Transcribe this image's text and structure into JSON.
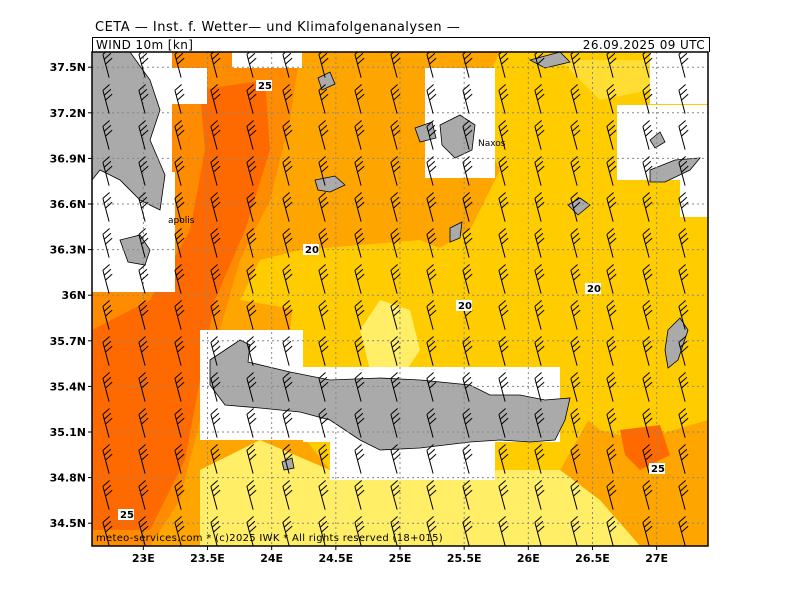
{
  "header": {
    "institute": "CETA — Inst. f. Wetter— und Klimafolgenanalysen —",
    "parameter": "WIND 10m [kn]",
    "datetime": "26.09.2025 09 UTC"
  },
  "footer": {
    "credit": "meteo-services.com * (c)2025 IWK * All rights reserved (18+015)"
  },
  "map": {
    "lon_range": [
      22.6,
      27.4
    ],
    "lat_range": [
      34.35,
      37.6
    ],
    "lon_ticks": [
      "23E",
      "23.5E",
      "24E",
      "24.5E",
      "25E",
      "25.5E",
      "26E",
      "26.5E",
      "27E"
    ],
    "lat_ticks": [
      "37.5N",
      "37.2N",
      "36.9N",
      "36.6N",
      "36.3N",
      "36N",
      "35.7N",
      "35.4N",
      "35.1N",
      "34.8N",
      "34.5N"
    ],
    "place_names": [
      "Naxos",
      "apolis"
    ],
    "contour_labels": [
      "25",
      "20",
      "20",
      "20",
      "25",
      "25"
    ],
    "colors": {
      "wind_15_20": "#ffee66",
      "wind_20_25": "#ffcc00",
      "wind_25_30": "#ffa500",
      "wind_30_35": "#ff8c00",
      "wind_35_plus": "#ff6a00",
      "land": "#aaaaaa",
      "no_data": "#ffffff",
      "grid": "#888888"
    }
  }
}
